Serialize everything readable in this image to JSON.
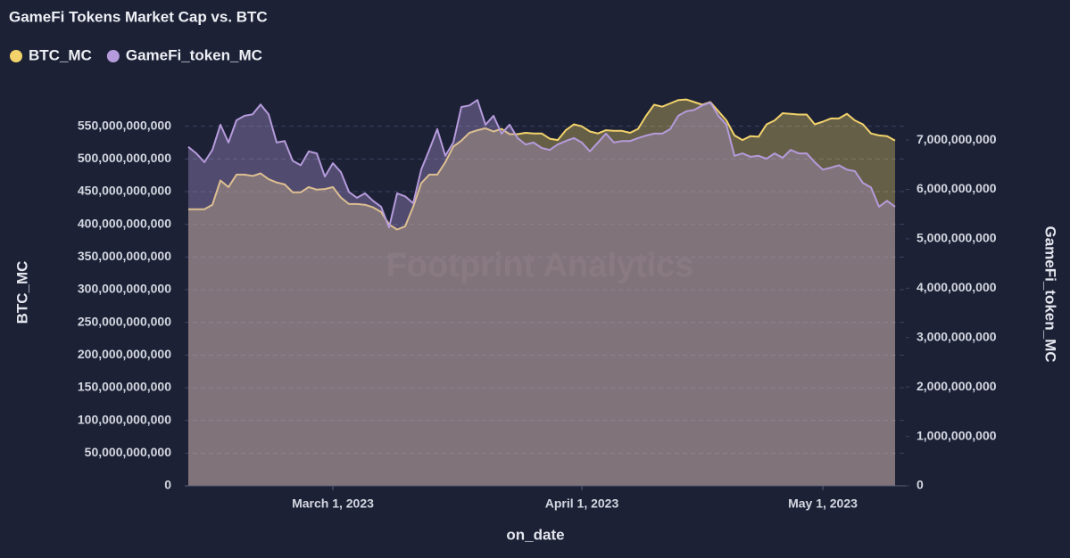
{
  "chart_data": {
    "type": "area",
    "title": "GameFi Tokens Market Cap vs. BTC",
    "watermark": "Footprint Analytics",
    "xlabel": "on_date",
    "ylabel": "BTC_MC",
    "y2label": "GameFi_token_MC",
    "legend": "top-left",
    "grid": true,
    "x": [
      "2023-02-11",
      "2023-02-12",
      "2023-02-13",
      "2023-02-14",
      "2023-02-15",
      "2023-02-16",
      "2023-02-17",
      "2023-02-18",
      "2023-02-19",
      "2023-02-20",
      "2023-02-21",
      "2023-02-22",
      "2023-02-23",
      "2023-02-24",
      "2023-02-25",
      "2023-02-26",
      "2023-02-27",
      "2023-02-28",
      "2023-03-01",
      "2023-03-02",
      "2023-03-03",
      "2023-03-04",
      "2023-03-05",
      "2023-03-06",
      "2023-03-07",
      "2023-03-08",
      "2023-03-09",
      "2023-03-10",
      "2023-03-11",
      "2023-03-12",
      "2023-03-13",
      "2023-03-14",
      "2023-03-15",
      "2023-03-16",
      "2023-03-17",
      "2023-03-18",
      "2023-03-19",
      "2023-03-20",
      "2023-03-21",
      "2023-03-22",
      "2023-03-23",
      "2023-03-24",
      "2023-03-25",
      "2023-03-26",
      "2023-03-27",
      "2023-03-28",
      "2023-03-29",
      "2023-03-30",
      "2023-03-31",
      "2023-04-01",
      "2023-04-02",
      "2023-04-03",
      "2023-04-04",
      "2023-04-05",
      "2023-04-06",
      "2023-04-07",
      "2023-04-08",
      "2023-04-09",
      "2023-04-10",
      "2023-04-11",
      "2023-04-12",
      "2023-04-13",
      "2023-04-14",
      "2023-04-15",
      "2023-04-16",
      "2023-04-17",
      "2023-04-18",
      "2023-04-19",
      "2023-04-20",
      "2023-04-21",
      "2023-04-22",
      "2023-04-23",
      "2023-04-24",
      "2023-04-25",
      "2023-04-26",
      "2023-04-27",
      "2023-04-28",
      "2023-04-29",
      "2023-04-30",
      "2023-05-01",
      "2023-05-02",
      "2023-05-03",
      "2023-05-04",
      "2023-05-05",
      "2023-05-06",
      "2023-05-07",
      "2023-05-08",
      "2023-05-09",
      "2023-05-10"
    ],
    "xlim": [
      "2023-02-11",
      "2023-05-10"
    ],
    "xticks": [
      {
        "value": "2023-03-01",
        "label": "March 1, 2023"
      },
      {
        "value": "2023-04-01",
        "label": "April 1, 2023"
      },
      {
        "value": "2023-05-01",
        "label": "May 1, 2023"
      }
    ],
    "ylim": [
      0,
      600000000000
    ],
    "yticks": [
      0,
      {
        "value": 50000000000,
        "label": "50,000,000,000"
      },
      {
        "value": 100000000000,
        "label": "100,000,000,000"
      },
      {
        "value": 150000000000,
        "label": "150,000,000,000"
      },
      {
        "value": 200000000000,
        "label": "200,000,000,000"
      },
      {
        "value": 250000000000,
        "label": "250,000,000,000"
      },
      {
        "value": 300000000000,
        "label": "300,000,000,000"
      },
      {
        "value": 350000000000,
        "label": "350,000,000,000"
      },
      {
        "value": 400000000000,
        "label": "400,000,000,000"
      },
      {
        "value": 450000000000,
        "label": "450,000,000,000"
      },
      {
        "value": 500000000000,
        "label": "500,000,000,000"
      },
      {
        "value": 550000000000,
        "label": "550,000,000,000"
      }
    ],
    "y2lim": [
      0,
      7940000000
    ],
    "y2ticks": [
      0,
      {
        "value": 1000000000,
        "label": "1,000,000,000"
      },
      {
        "value": 2000000000,
        "label": "2,000,000,000"
      },
      {
        "value": 3000000000,
        "label": "3,000,000,000"
      },
      {
        "value": 4000000000,
        "label": "4,000,000,000"
      },
      {
        "value": 5000000000,
        "label": "5,000,000,000"
      },
      {
        "value": 6000000000,
        "label": "6,000,000,000"
      },
      {
        "value": 7000000000,
        "label": "7,000,000,000"
      }
    ],
    "series": [
      {
        "name": "BTC_MC",
        "color": "#f2d36b",
        "axis": "y",
        "values": [
          423000000000,
          423000000000,
          423000000000,
          430000000000,
          467000000000,
          457000000000,
          476000000000,
          476000000000,
          474000000000,
          478000000000,
          469000000000,
          464000000000,
          461000000000,
          449000000000,
          449000000000,
          457000000000,
          453000000000,
          454000000000,
          457000000000,
          441000000000,
          431000000000,
          431000000000,
          430000000000,
          426000000000,
          419000000000,
          400000000000,
          392000000000,
          397000000000,
          427000000000,
          463000000000,
          476000000000,
          476000000000,
          495000000000,
          519000000000,
          528000000000,
          540000000000,
          544000000000,
          547000000000,
          542000000000,
          546000000000,
          538000000000,
          538000000000,
          540000000000,
          539000000000,
          539000000000,
          531000000000,
          529000000000,
          544000000000,
          553000000000,
          550000000000,
          542000000000,
          539000000000,
          544000000000,
          543000000000,
          543000000000,
          540000000000,
          546000000000,
          566000000000,
          583000000000,
          580000000000,
          585000000000,
          590000000000,
          591000000000,
          587000000000,
          583000000000,
          587000000000,
          573000000000,
          559000000000,
          536000000000,
          529000000000,
          535000000000,
          534000000000,
          553000000000,
          559000000000,
          570000000000,
          569000000000,
          568000000000,
          568000000000,
          553000000000,
          557000000000,
          562000000000,
          562000000000,
          569000000000,
          559000000000,
          553000000000,
          539000000000,
          536000000000,
          535000000000,
          528000000000
        ]
      },
      {
        "name": "GameFi_token_MC",
        "color": "#b59bdb",
        "axis": "y2",
        "values": [
          6860000000,
          6730000000,
          6550000000,
          6800000000,
          7310000000,
          6950000000,
          7400000000,
          7490000000,
          7520000000,
          7720000000,
          7520000000,
          6950000000,
          6980000000,
          6580000000,
          6490000000,
          6770000000,
          6730000000,
          6260000000,
          6530000000,
          6350000000,
          5950000000,
          5830000000,
          5920000000,
          5770000000,
          5650000000,
          5230000000,
          5920000000,
          5860000000,
          5720000000,
          6400000000,
          6800000000,
          7220000000,
          6680000000,
          6950000000,
          7670000000,
          7700000000,
          7810000000,
          7310000000,
          7490000000,
          7130000000,
          7310000000,
          7040000000,
          6910000000,
          6950000000,
          6840000000,
          6800000000,
          6910000000,
          6980000000,
          7040000000,
          6950000000,
          6770000000,
          6950000000,
          7130000000,
          6950000000,
          6980000000,
          6980000000,
          7040000000,
          7090000000,
          7130000000,
          7130000000,
          7220000000,
          7490000000,
          7580000000,
          7610000000,
          7700000000,
          7760000000,
          7490000000,
          7310000000,
          6680000000,
          6730000000,
          6660000000,
          6680000000,
          6620000000,
          6730000000,
          6640000000,
          6800000000,
          6730000000,
          6730000000,
          6550000000,
          6400000000,
          6440000000,
          6490000000,
          6400000000,
          6370000000,
          6130000000,
          6040000000,
          5650000000,
          5770000000,
          5650000000
        ]
      }
    ]
  }
}
